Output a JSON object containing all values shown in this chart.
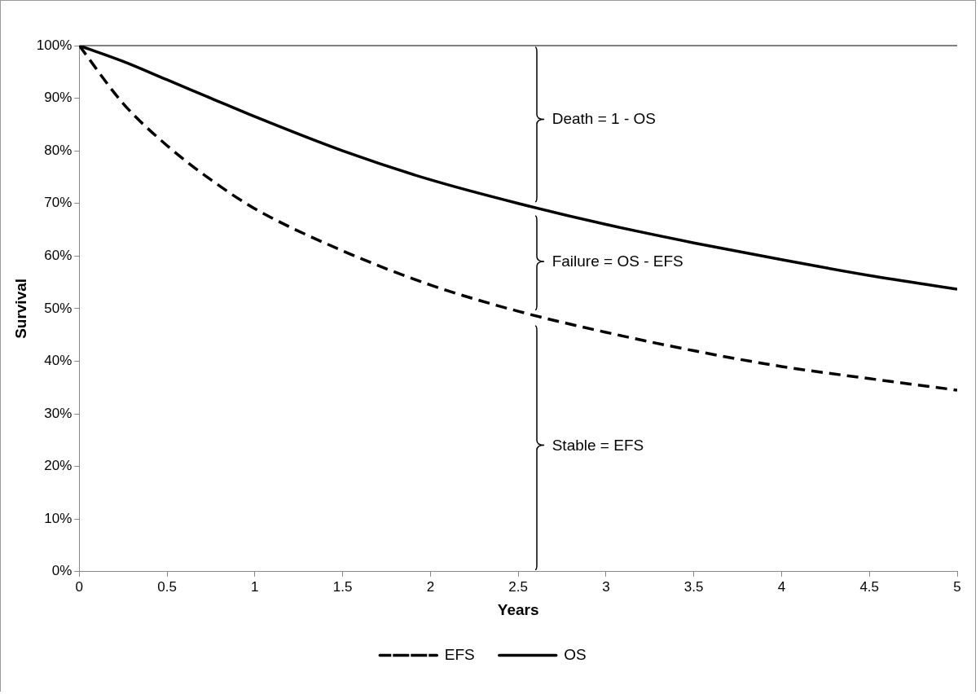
{
  "chart_data": {
    "type": "line",
    "xlabel": "Years",
    "ylabel": "Survival",
    "x": [
      0,
      0.25,
      0.5,
      0.75,
      1,
      1.5,
      2,
      2.5,
      3,
      3.5,
      4,
      4.5,
      5
    ],
    "series": [
      {
        "name": "EFS",
        "color": "#000000",
        "line_style": "dashed",
        "values": [
          100,
          89,
          81,
          74.5,
          69,
          61,
          54.5,
          49.5,
          45.5,
          42,
          39,
          36.7,
          34.5
        ]
      },
      {
        "name": "OS",
        "color": "#000000",
        "line_style": "solid",
        "values": [
          100,
          97,
          93.5,
          90,
          86.5,
          80,
          74.5,
          70,
          66,
          62.5,
          59.3,
          56.3,
          53.7
        ]
      }
    ],
    "xlim": [
      0,
      5
    ],
    "xticks": [
      0,
      0.5,
      1,
      1.5,
      2,
      2.5,
      3,
      3.5,
      4,
      4.5,
      5
    ],
    "ylim": [
      0,
      100
    ],
    "yticks": [
      {
        "value": 0,
        "label": "0%"
      },
      {
        "value": 10,
        "label": "10%"
      },
      {
        "value": 20,
        "label": "20%"
      },
      {
        "value": 30,
        "label": "30%"
      },
      {
        "value": 40,
        "label": "40%"
      },
      {
        "value": 50,
        "label": "50%"
      },
      {
        "value": 60,
        "label": "60%"
      },
      {
        "value": 70,
        "label": "70%"
      },
      {
        "value": 80,
        "label": "80%"
      },
      {
        "value": 90,
        "label": "90%"
      },
      {
        "value": 100,
        "label": "100%"
      }
    ],
    "ref_lines": [
      {
        "axis": "y",
        "value": 100,
        "color": "#000000"
      }
    ],
    "annotations": [
      "Death = 1 - OS",
      "Failure = OS - EFS",
      "Stable = EFS"
    ],
    "grid": false,
    "legend": "bottom",
    "marker": "none"
  }
}
